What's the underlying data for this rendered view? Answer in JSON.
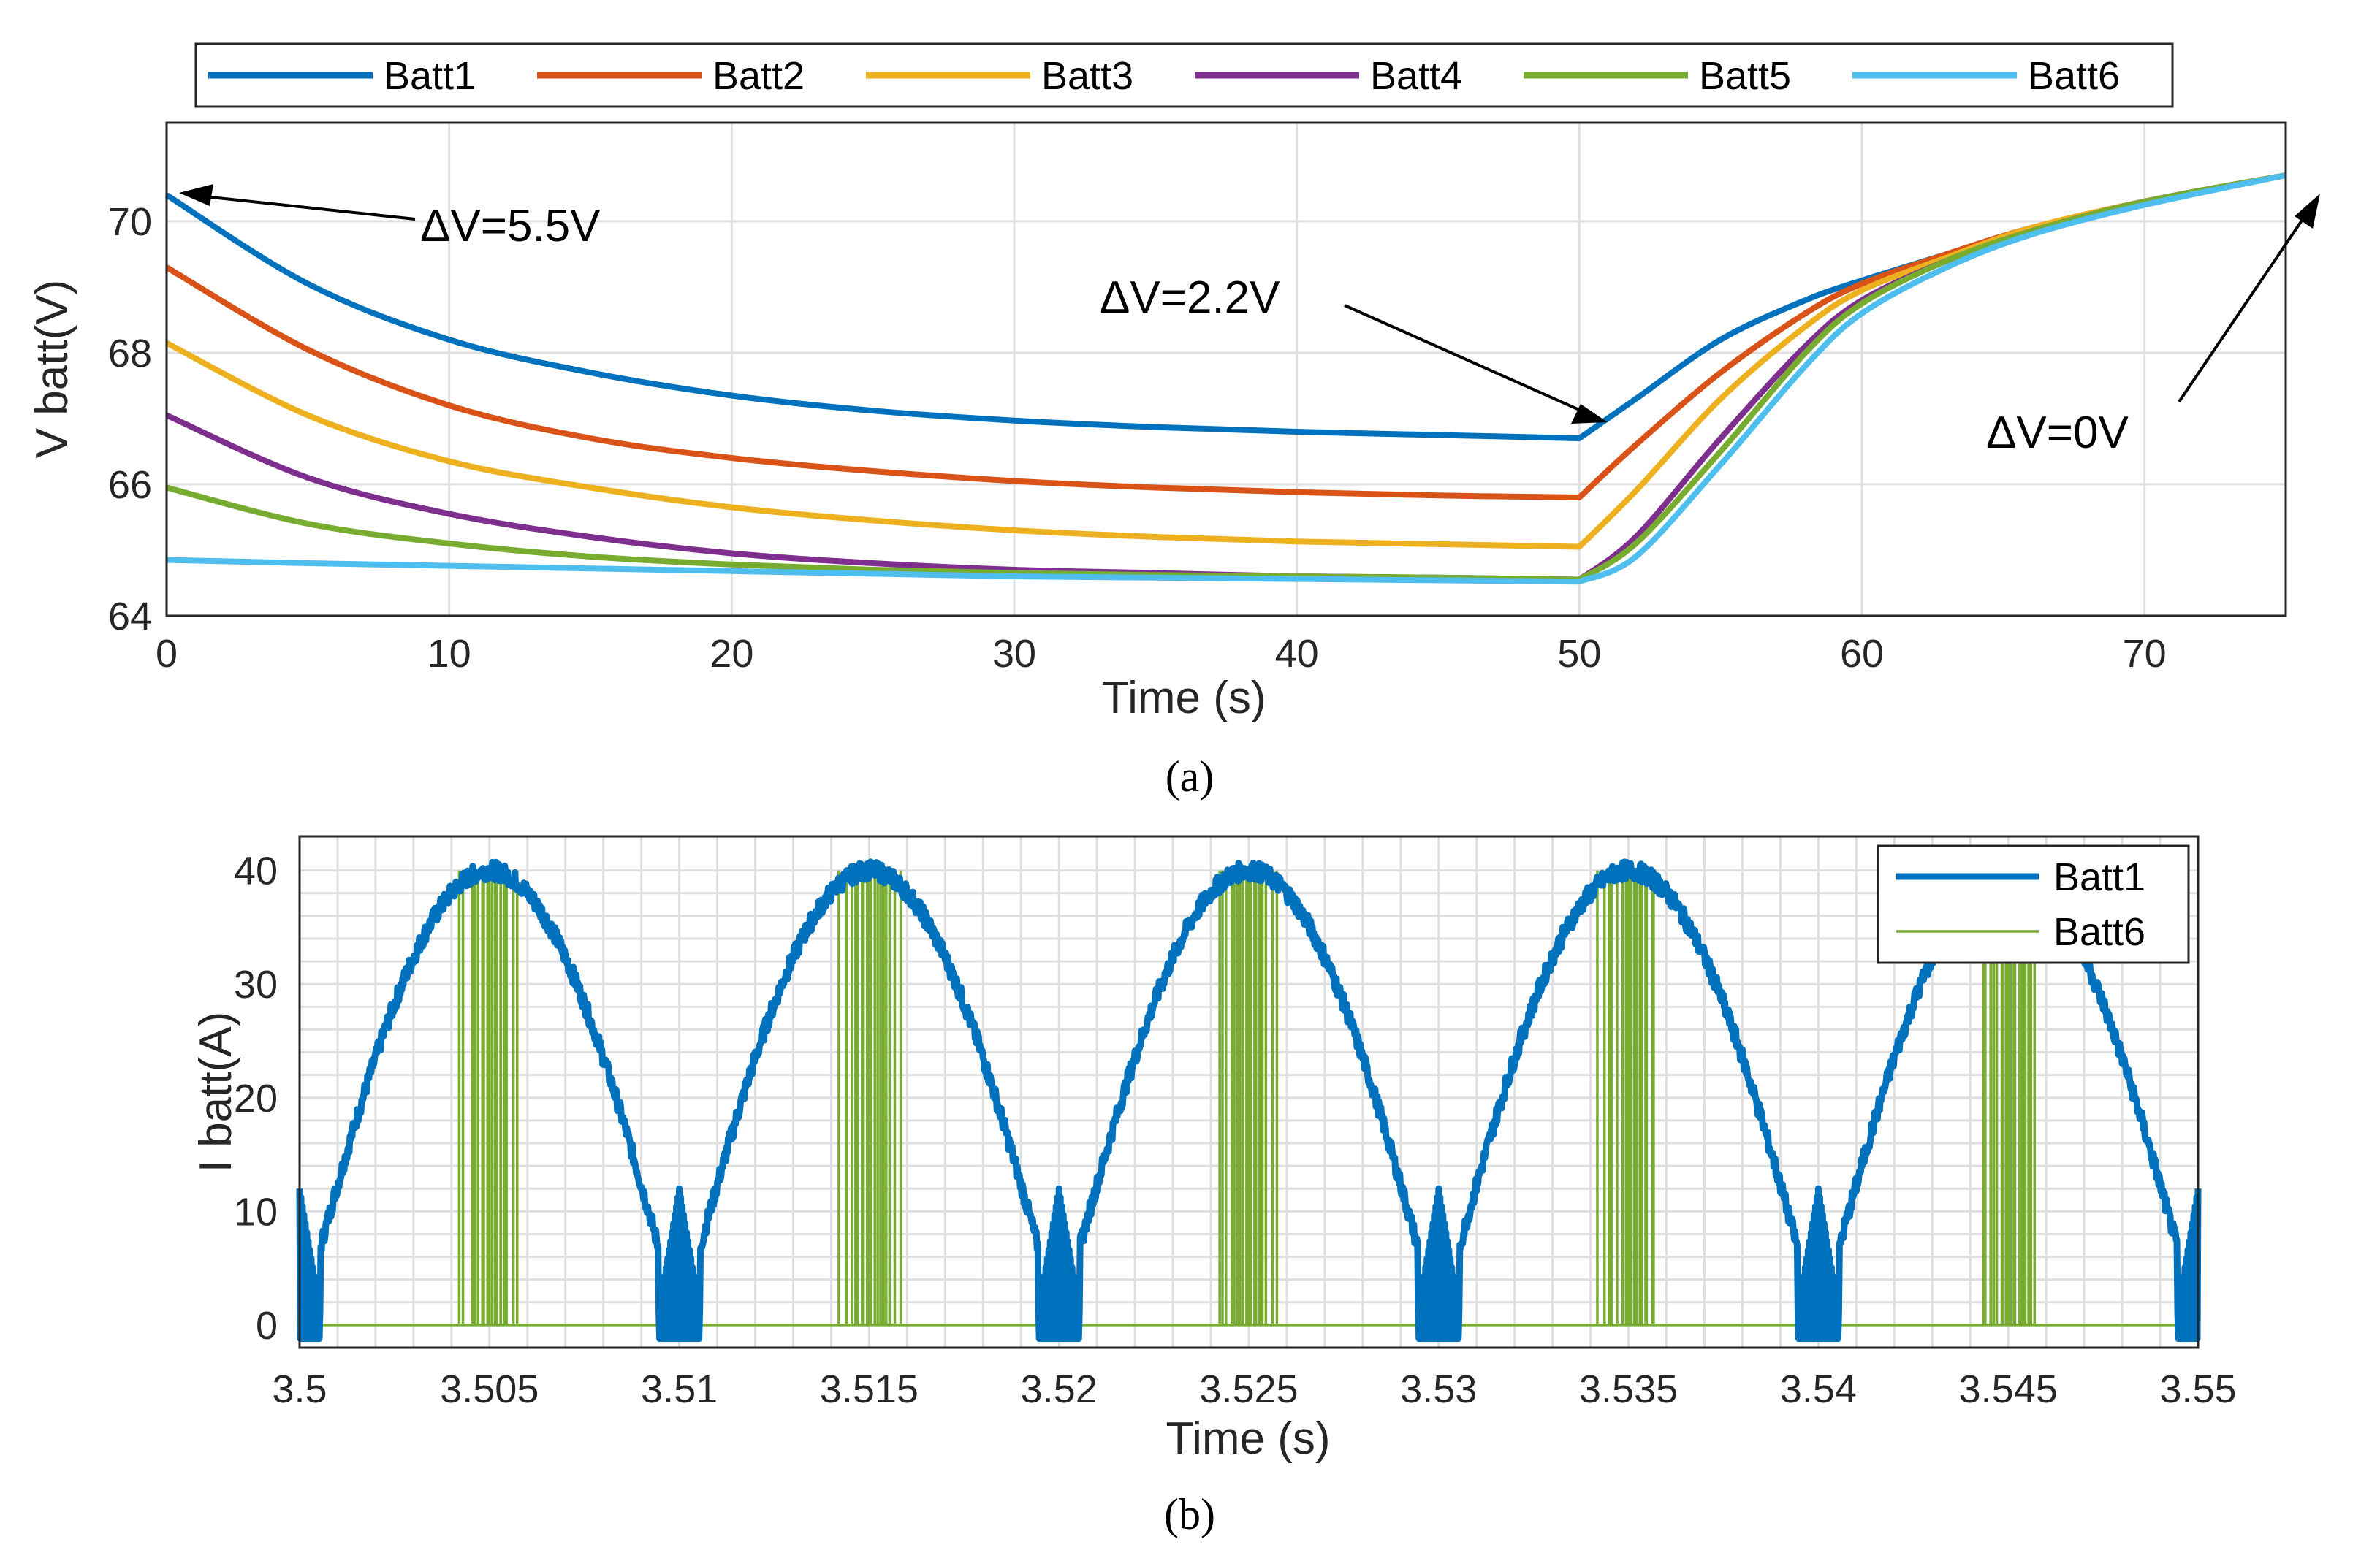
{
  "chart_data": [
    {
      "type": "line",
      "panel": "a",
      "caption": "(a)",
      "xlabel": "Time (s)",
      "ylabel": "V batt(V)",
      "xlim": [
        0,
        75
      ],
      "ylim": [
        64,
        71.5
      ],
      "xticks": [
        0,
        10,
        20,
        30,
        40,
        50,
        60,
        70
      ],
      "yticks": [
        64,
        66,
        68,
        70
      ],
      "grid": true,
      "legend": "top, horizontal",
      "annotations": [
        {
          "text": "ΔV=5.5V",
          "x": 0.5,
          "y": 70.4
        },
        {
          "text": "ΔV=2.2V",
          "x": 50,
          "y": 66.7
        },
        {
          "text": "ΔV=0V",
          "x": 75,
          "y": 70.7
        }
      ],
      "series": [
        {
          "name": "Batt1",
          "color": "#0072BD",
          "x": [
            0,
            5,
            10,
            15,
            20,
            25,
            30,
            35,
            40,
            45,
            50,
            52,
            55,
            58,
            60,
            63,
            66,
            70,
            75
          ],
          "y": [
            70.4,
            69.05,
            68.2,
            67.7,
            67.35,
            67.12,
            66.97,
            66.87,
            66.8,
            66.75,
            66.7,
            67.3,
            68.2,
            68.8,
            69.1,
            69.5,
            69.9,
            70.3,
            70.7
          ]
        },
        {
          "name": "Batt2",
          "color": "#D95319",
          "x": [
            0,
            5,
            10,
            15,
            20,
            25,
            30,
            35,
            40,
            45,
            50,
            52,
            55,
            58,
            60,
            63,
            66,
            70,
            75
          ],
          "y": [
            69.3,
            68.05,
            67.2,
            66.7,
            66.4,
            66.2,
            66.05,
            65.95,
            65.88,
            65.83,
            65.8,
            66.6,
            67.7,
            68.6,
            69.05,
            69.5,
            69.9,
            70.3,
            70.7
          ]
        },
        {
          "name": "Batt3",
          "color": "#EDB120",
          "x": [
            0,
            5,
            10,
            15,
            20,
            25,
            30,
            35,
            40,
            45,
            50,
            52,
            55,
            58,
            60,
            63,
            66,
            70,
            75
          ],
          "y": [
            68.15,
            67.05,
            66.35,
            65.95,
            65.65,
            65.45,
            65.3,
            65.2,
            65.13,
            65.09,
            65.05,
            65.9,
            67.3,
            68.4,
            68.95,
            69.45,
            69.9,
            70.3,
            70.7
          ]
        },
        {
          "name": "Batt4",
          "color": "#7E2F8E",
          "x": [
            0,
            5,
            10,
            15,
            20,
            25,
            30,
            35,
            40,
            45,
            50,
            52,
            55,
            58,
            60,
            63,
            66,
            70,
            75
          ],
          "y": [
            67.05,
            66.1,
            65.55,
            65.2,
            64.95,
            64.8,
            64.7,
            64.65,
            64.6,
            64.58,
            64.55,
            65.2,
            66.7,
            68.1,
            68.8,
            69.4,
            69.85,
            70.3,
            70.7
          ]
        },
        {
          "name": "Batt5",
          "color": "#77AC30",
          "x": [
            0,
            5,
            10,
            15,
            20,
            25,
            30,
            35,
            40,
            45,
            50,
            52,
            55,
            58,
            60,
            63,
            66,
            70,
            75
          ],
          "y": [
            65.95,
            65.4,
            65.1,
            64.9,
            64.78,
            64.7,
            64.65,
            64.62,
            64.6,
            64.58,
            64.55,
            65.1,
            66.5,
            68.0,
            68.75,
            69.4,
            69.85,
            70.3,
            70.7
          ]
        },
        {
          "name": "Batt6",
          "color": "#4DBEEE",
          "x": [
            0,
            5,
            10,
            15,
            20,
            25,
            30,
            35,
            40,
            45,
            50,
            52,
            55,
            58,
            60,
            63,
            66,
            70,
            75
          ],
          "y": [
            64.85,
            64.8,
            64.76,
            64.72,
            64.68,
            64.64,
            64.6,
            64.58,
            64.56,
            64.54,
            64.52,
            64.9,
            66.3,
            67.8,
            68.6,
            69.3,
            69.8,
            70.25,
            70.7
          ]
        }
      ]
    },
    {
      "type": "line",
      "panel": "b",
      "caption": "(b)",
      "xlabel": "Time (s)",
      "ylabel": "I batt(A)",
      "xlim": [
        3.5,
        3.55
      ],
      "ylim": [
        -2,
        43
      ],
      "xticks": [
        3.5,
        3.505,
        3.51,
        3.515,
        3.52,
        3.525,
        3.53,
        3.535,
        3.54,
        3.545,
        3.55
      ],
      "xtick_labels": [
        "3.5",
        "3.505",
        "3.51",
        "3.515",
        "3.52",
        "3.525",
        "3.53",
        "3.535",
        "3.54",
        "3.545",
        "3.55"
      ],
      "yticks": [
        0,
        10,
        20,
        30,
        40
      ],
      "grid": true,
      "legend": "top-right",
      "series": [
        {
          "name": "Batt1",
          "color": "#0072BD",
          "description": "rectified sinusoidal current, period 0.01 s, peaks ~40 A at 3.505, 3.515, 3.525, 3.535, 3.545 s, zeros at 3.5, 3.51, 3.52, 3.53, 3.54, 3.55 s",
          "period": 0.01,
          "peak": 40,
          "peaks_x": [
            3.505,
            3.515,
            3.525,
            3.535,
            3.545
          ],
          "zeros_x": [
            3.5,
            3.51,
            3.52,
            3.53,
            3.54,
            3.55
          ]
        },
        {
          "name": "Batt6",
          "color": "#77AC30",
          "description": "pulsed switching current 0/40 A bursts around each peak",
          "burst_center_x": [
            3.505,
            3.515,
            3.525,
            3.535,
            3.545
          ],
          "burst_halfwidth": 0.001,
          "high": 40,
          "low": 0
        }
      ]
    }
  ]
}
